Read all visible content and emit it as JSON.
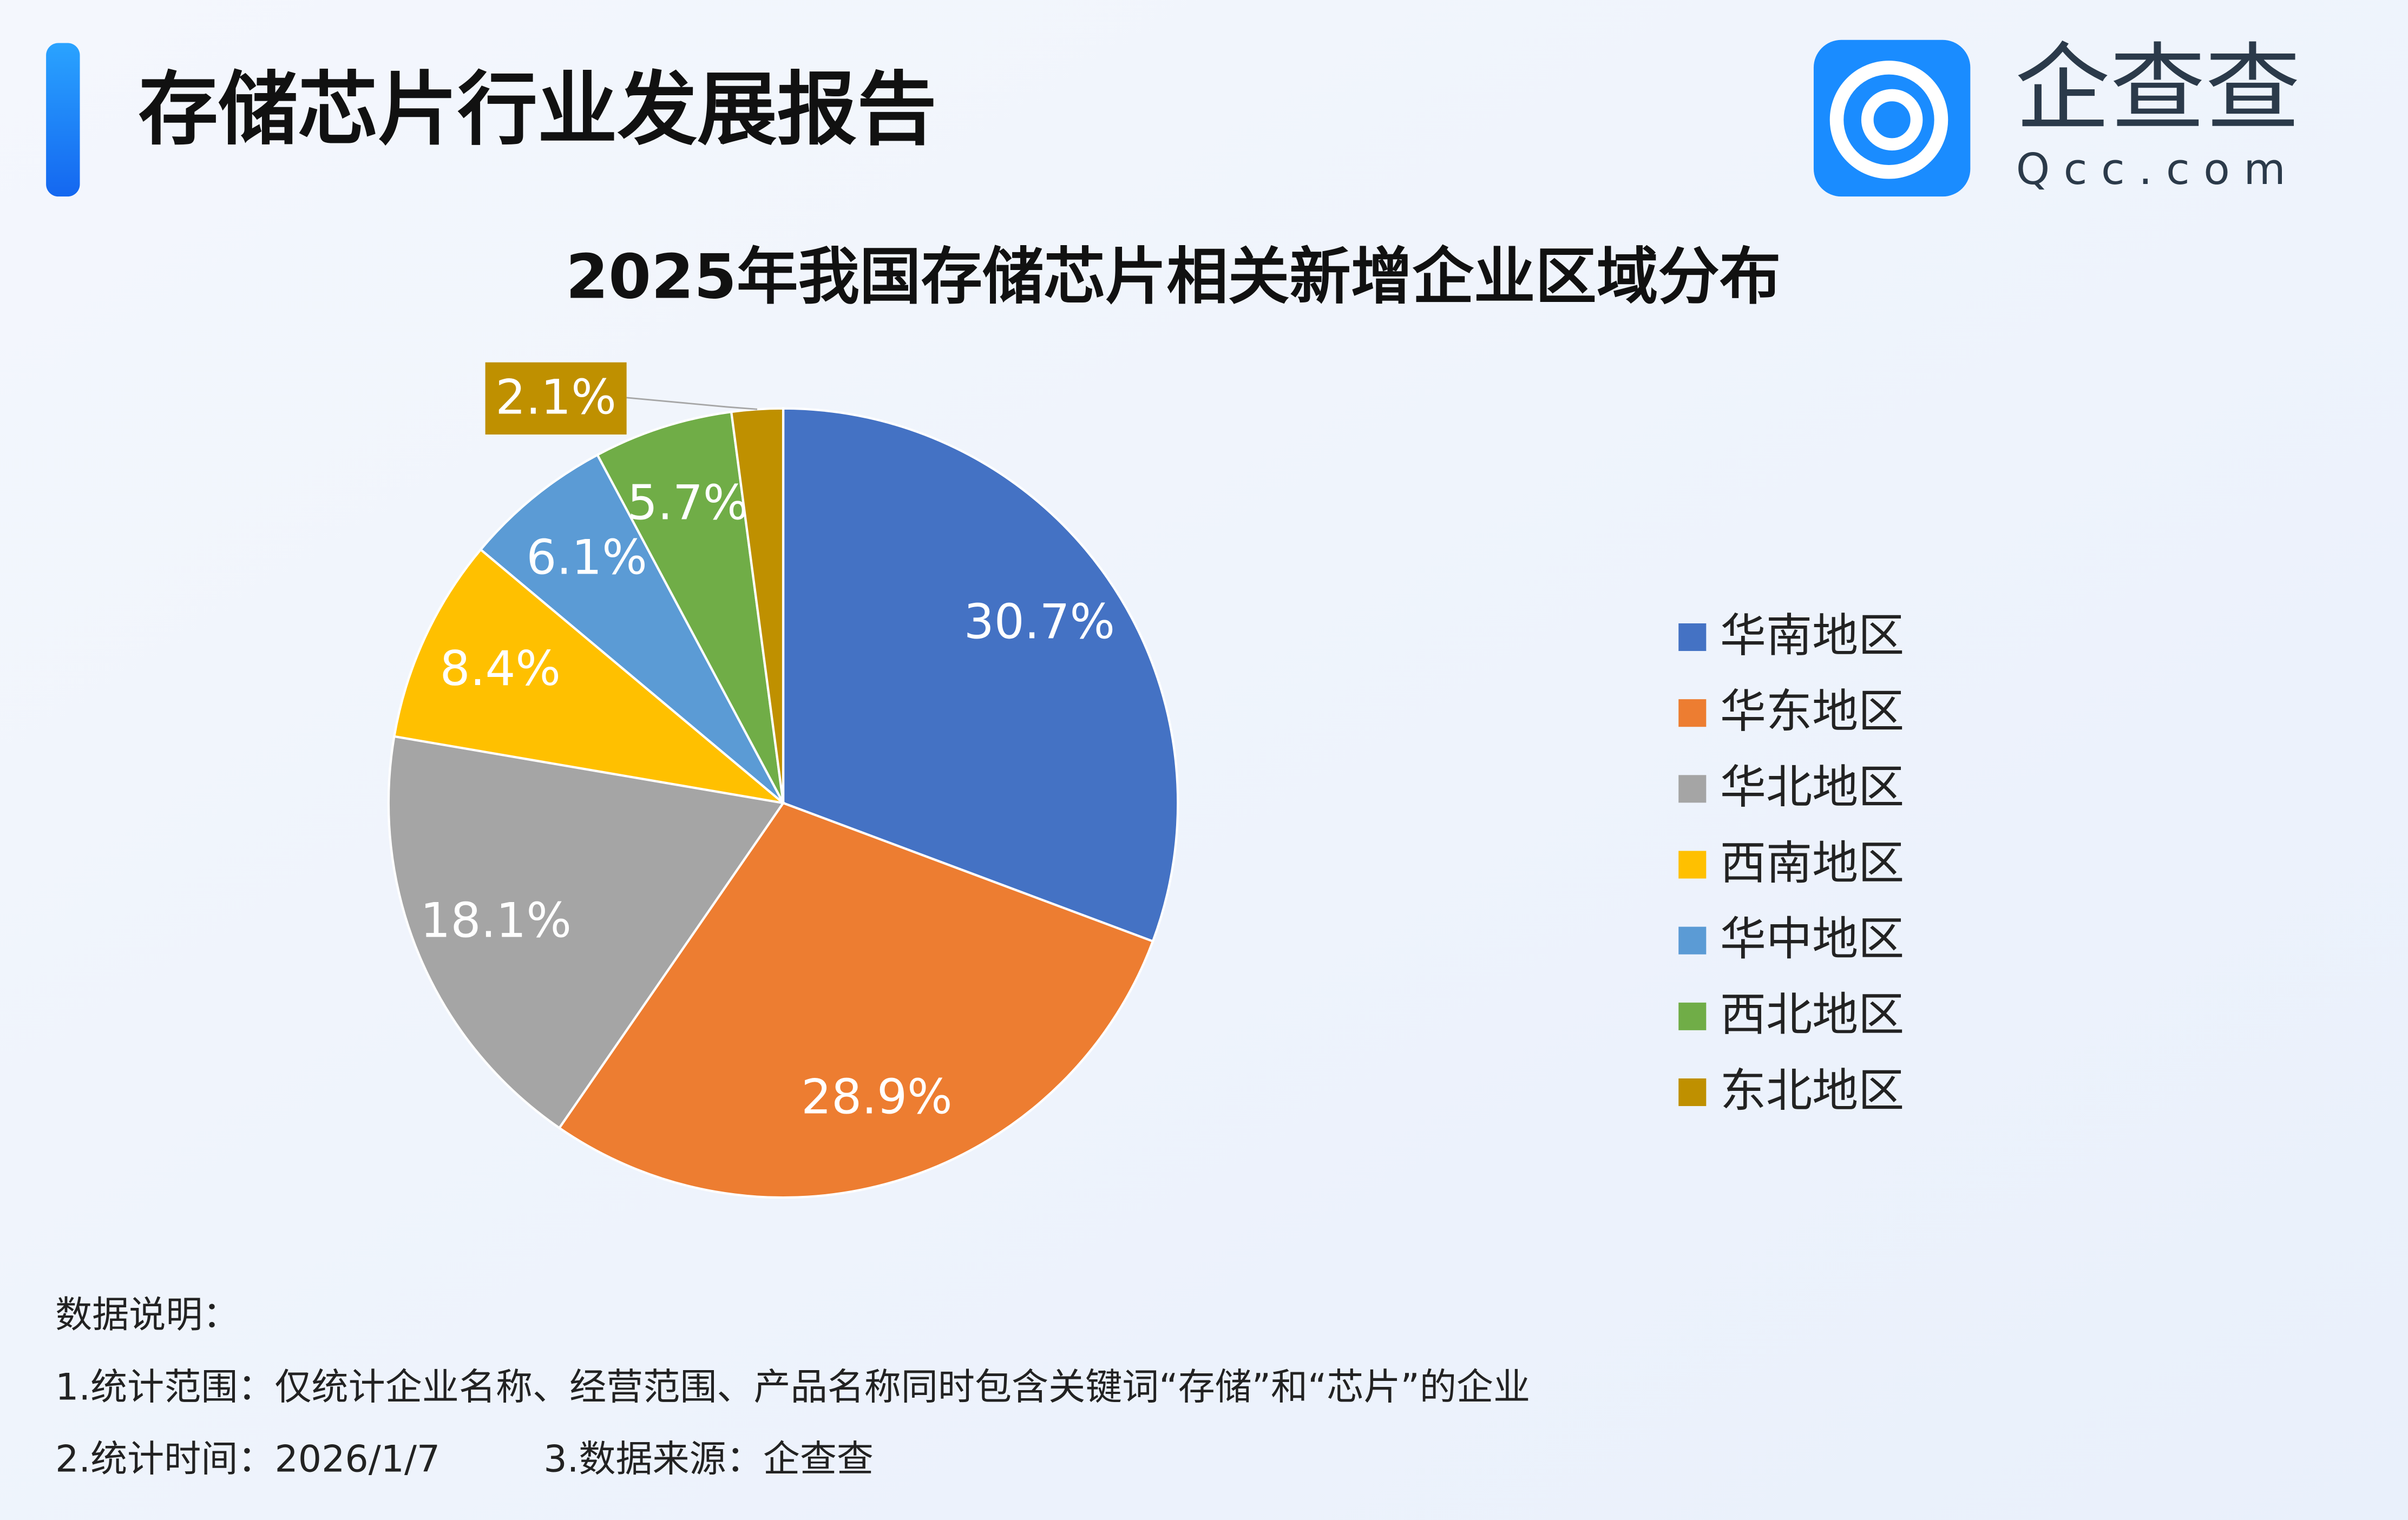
{
  "header": {
    "title": "存储芯片行业发展报告",
    "logo_name": "企查查",
    "logo_domain": "Qcc.com"
  },
  "chart_data": {
    "type": "pie",
    "title": "2025年我国存储芯片相关新增企业区域分布",
    "categories": [
      "华南地区",
      "华东地区",
      "华北地区",
      "西南地区",
      "华中地区",
      "西北地区",
      "东北地区"
    ],
    "values": [
      30.7,
      28.9,
      18.1,
      8.4,
      6.1,
      5.7,
      2.1
    ],
    "value_labels": [
      "30.7%",
      "28.9%",
      "18.1%",
      "8.4%",
      "6.1%",
      "5.7%",
      "2.1%"
    ],
    "colors": [
      "#4472c4",
      "#ed7d31",
      "#a5a5a5",
      "#ffc000",
      "#5b9bd5",
      "#70ad47",
      "#bf9000"
    ],
    "legend": "right"
  },
  "notes": {
    "heading": "数据说明：",
    "lines": [
      "1.统计范围：仅统计企业名称、经营范围、产品名称同时包含关键词“存储”和“芯片”的企业",
      "2.统计时间：2026/1/7",
      "3.数据来源：企查查"
    ]
  }
}
